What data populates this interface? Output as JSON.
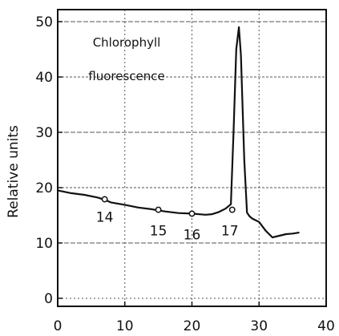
{
  "chart_data": {
    "type": "line",
    "title": "",
    "xlabel": "",
    "ylabel": "Relative units",
    "xlim": [
      0,
      40
    ],
    "ylim": [
      0,
      52
    ],
    "xticks": [
      0,
      10,
      20,
      30,
      40
    ],
    "yticks": [
      0,
      10,
      20,
      30,
      40,
      50
    ],
    "grid": true,
    "annotation": [
      "Chlorophyll",
      "fluorescence"
    ],
    "series": [
      {
        "x": [
          0,
          2,
          4,
          6,
          7,
          8,
          10,
          12,
          14,
          15,
          16,
          18,
          20,
          22,
          23,
          24,
          25,
          25.8,
          26.2,
          26.6,
          27,
          27.3,
          27.8,
          28.2,
          28.6,
          29,
          30,
          31,
          32,
          33,
          34,
          35,
          36
        ],
        "y": [
          19.5,
          19,
          18.7,
          18.2,
          17.8,
          17.3,
          16.9,
          16.4,
          16.1,
          15.9,
          15.7,
          15.4,
          15.3,
          15.1,
          15.2,
          15.6,
          16.2,
          17,
          30,
          45,
          49,
          44,
          25,
          15.5,
          14.8,
          14.4,
          13.8,
          12.2,
          11,
          11.3,
          11.6,
          11.7,
          11.9
        ]
      }
    ],
    "markers": [
      {
        "label": "14",
        "x": 7,
        "y": 17.9
      },
      {
        "label": "15",
        "x": 15,
        "y": 16.0
      },
      {
        "label": "16",
        "x": 20,
        "y": 15.3
      },
      {
        "label": "17",
        "x": 26,
        "y": 16.0
      }
    ],
    "colors": {
      "line": "#111111",
      "grid": "#555555",
      "marker_fill": "#ffffff"
    }
  }
}
